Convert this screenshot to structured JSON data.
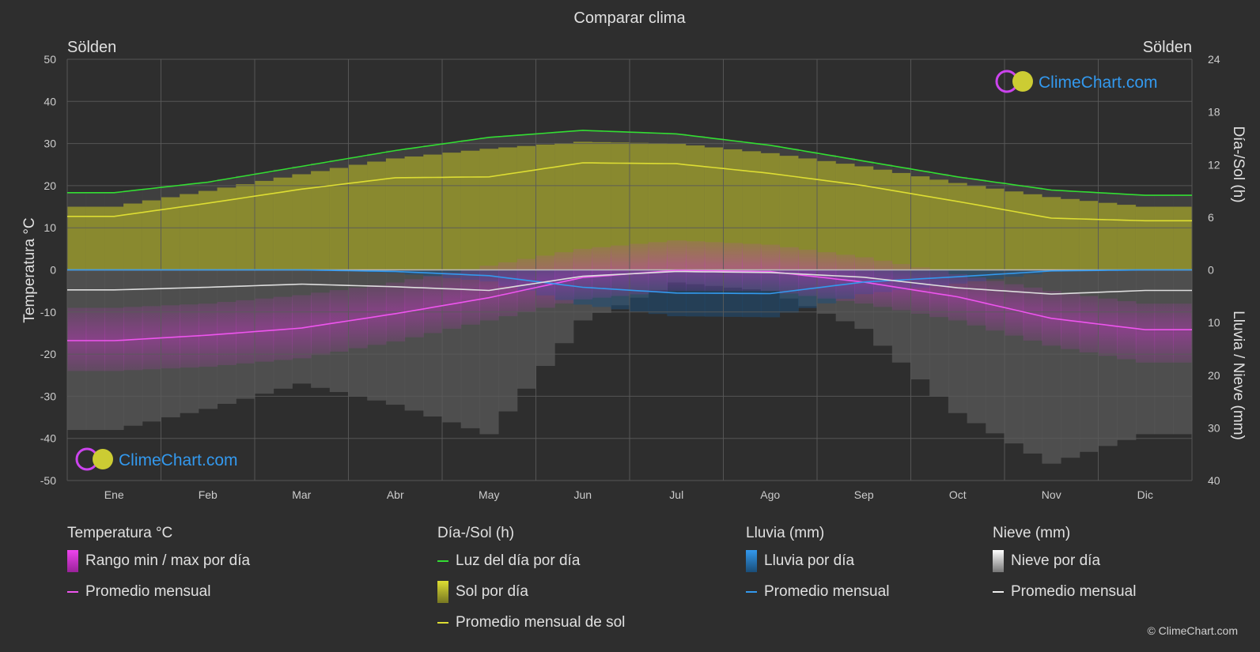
{
  "header": {
    "title": "Comparar clima",
    "location_left": "Sölden",
    "location_right": "Sölden"
  },
  "axes": {
    "left_label": "Temperatura °C",
    "right_top_label": "Día-/Sol (h)",
    "right_bottom_label": "Lluvia / Nieve (mm)",
    "left_ticks": [
      "50",
      "40",
      "30",
      "20",
      "10",
      "0",
      "-10",
      "-20",
      "-30",
      "-40",
      "-50"
    ],
    "right_top_ticks": [
      "24",
      "18",
      "12",
      "6",
      "0"
    ],
    "right_bottom_ticks": [
      "10",
      "20",
      "30",
      "40"
    ],
    "months": [
      "Ene",
      "Feb",
      "Mar",
      "Abr",
      "May",
      "Jun",
      "Jul",
      "Ago",
      "Sep",
      "Oct",
      "Nov",
      "Dic"
    ]
  },
  "watermark": {
    "text": "ClimeChart.com"
  },
  "legend": {
    "temperature": {
      "title": "Temperatura °C",
      "range_label": "Rango min / max por día",
      "avg_label": "Promedio mensual"
    },
    "daylight": {
      "title": "Día-/Sol (h)",
      "daylight_label": "Luz del día por día",
      "sun_label": "Sol por día",
      "sun_avg_label": "Promedio mensual de sol"
    },
    "rain": {
      "title": "Lluvia (mm)",
      "rain_label": "Lluvia por día",
      "avg_label": "Promedio mensual"
    },
    "snow": {
      "title": "Nieve (mm)",
      "snow_label": "Nieve por día",
      "avg_label": "Promedio mensual"
    }
  },
  "copyright": "© ClimeChart.com",
  "colors": {
    "background": "#2e2e2e",
    "grid": "#5a5a5a",
    "daylight": "#33dd33",
    "sunshine": "#dddd33",
    "sunshine_fill": "#a6a62a",
    "temperature": "#ee55ee",
    "temperature_range": "#cc33cc",
    "rain": "#3399ee",
    "snow": "#dddddd",
    "text": "#e0e0e0"
  },
  "chart_data": {
    "type": "line",
    "x_categories": [
      "Ene",
      "Feb",
      "Mar",
      "Abr",
      "May",
      "Jun",
      "Jul",
      "Ago",
      "Sep",
      "Oct",
      "Nov",
      "Dic"
    ],
    "y_left": {
      "label": "Temperatura °C",
      "range": [
        -50,
        50
      ]
    },
    "y_right_top": {
      "label": "Día-/Sol (h)",
      "range": [
        0,
        24
      ]
    },
    "y_right_bottom": {
      "label": "Lluvia / Nieve (mm)",
      "range": [
        0,
        40
      ]
    },
    "grid": true,
    "series": [
      {
        "name": "Luz del día por día",
        "axis": "right_top",
        "unit": "h",
        "values": [
          8.8,
          10.0,
          11.8,
          13.6,
          15.1,
          15.9,
          15.5,
          14.2,
          12.4,
          10.6,
          9.1,
          8.5
        ]
      },
      {
        "name": "Sol por día",
        "axis": "right_top",
        "unit": "h",
        "values": [
          7.2,
          9.0,
          10.9,
          12.7,
          13.8,
          14.6,
          14.4,
          13.3,
          11.8,
          9.9,
          8.3,
          7.2
        ]
      },
      {
        "name": "Promedio mensual de sol",
        "axis": "right_top",
        "unit": "h",
        "values": [
          6.1,
          7.6,
          9.2,
          10.5,
          10.6,
          12.2,
          12.1,
          11.0,
          9.6,
          7.8,
          5.9,
          5.6
        ]
      },
      {
        "name": "Promedio mensual (Temperatura)",
        "axis": "left",
        "unit": "°C",
        "values": [
          -16.8,
          -15.5,
          -13.8,
          -10.4,
          -6.6,
          -1.8,
          -0.1,
          -0.4,
          -2.9,
          -6.4,
          -11.5,
          -14.2
        ]
      },
      {
        "name": "Rango min / max por día",
        "axis": "left",
        "unit": "°C",
        "min": [
          -24,
          -23,
          -21,
          -17,
          -12,
          -7,
          -5,
          -5,
          -8,
          -12,
          -18,
          -22
        ],
        "max": [
          -9,
          -8,
          -6,
          -3,
          1,
          5,
          7,
          6,
          3,
          -1,
          -5,
          -8
        ]
      },
      {
        "name": "Promedio mensual (Lluvia)",
        "axis": "right_bottom",
        "unit": "mm",
        "values": [
          0,
          0,
          0,
          0.3,
          1.1,
          3.3,
          4.4,
          4.5,
          2.3,
          1.3,
          0.2,
          0
        ]
      },
      {
        "name": "Promedio mensual (Nieve)",
        "axis": "right_bottom",
        "unit": "mm",
        "values": [
          3.8,
          3.3,
          2.7,
          3.2,
          3.9,
          1.2,
          0.3,
          0.5,
          1.4,
          3.4,
          4.6,
          3.9
        ]
      }
    ]
  }
}
